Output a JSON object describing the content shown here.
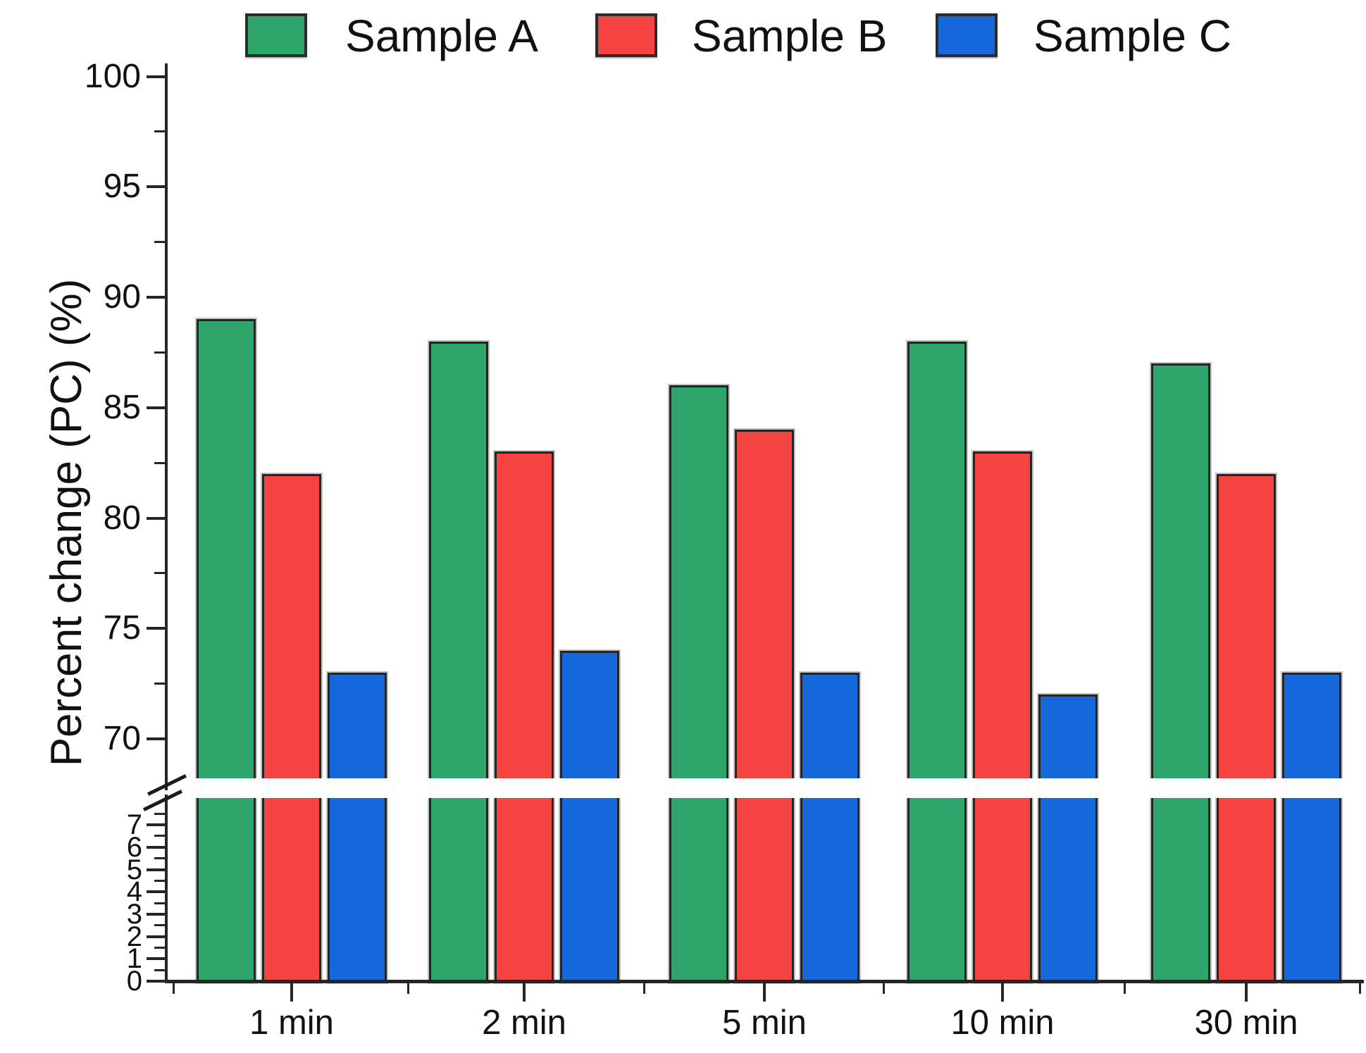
{
  "legend": {
    "items": [
      {
        "label": "Sample A",
        "color": "#2EA56A"
      },
      {
        "label": "Sample B",
        "color": "#F44341"
      },
      {
        "label": "Sample C",
        "color": "#1768DB"
      }
    ]
  },
  "y_axis": {
    "title": "Percent change (PC) (%)",
    "upper_tick_labels": [
      100,
      95,
      90,
      85,
      80,
      75,
      70
    ],
    "lower_tick_labels": [
      7,
      6,
      5,
      4,
      3,
      2,
      1,
      0
    ],
    "axis_break": true
  },
  "x_axis": {
    "categories": [
      "1 min",
      "2 min",
      "5 min",
      "10 min",
      "30 min"
    ]
  },
  "chart_data": {
    "type": "bar",
    "title": "",
    "xlabel": "",
    "ylabel": "Percent change (PC) (%)",
    "categories": [
      "1 min",
      "2 min",
      "5 min",
      "10 min",
      "30 min"
    ],
    "series": [
      {
        "name": "Sample A",
        "color": "#2EA56A",
        "values": [
          89,
          88,
          86,
          88,
          87
        ]
      },
      {
        "name": "Sample B",
        "color": "#F44341",
        "values": [
          82,
          83,
          84,
          83,
          82
        ]
      },
      {
        "name": "Sample C",
        "color": "#1768DB",
        "values": [
          73,
          74,
          73,
          72,
          73
        ]
      }
    ],
    "y_axis_break": true,
    "upper_panel_range": [
      68,
      100
    ],
    "upper_major_ticks": [
      70,
      75,
      80,
      85,
      90,
      95,
      100
    ],
    "upper_minor_tick_step": 2.5,
    "lower_panel_range": [
      0,
      8
    ],
    "lower_major_ticks": [
      0,
      1,
      2,
      3,
      4,
      5,
      6,
      7
    ],
    "lower_minor_tick_step": 0.5,
    "grid": false,
    "legend_position": "top",
    "bar_edge_color": "#242424"
  }
}
